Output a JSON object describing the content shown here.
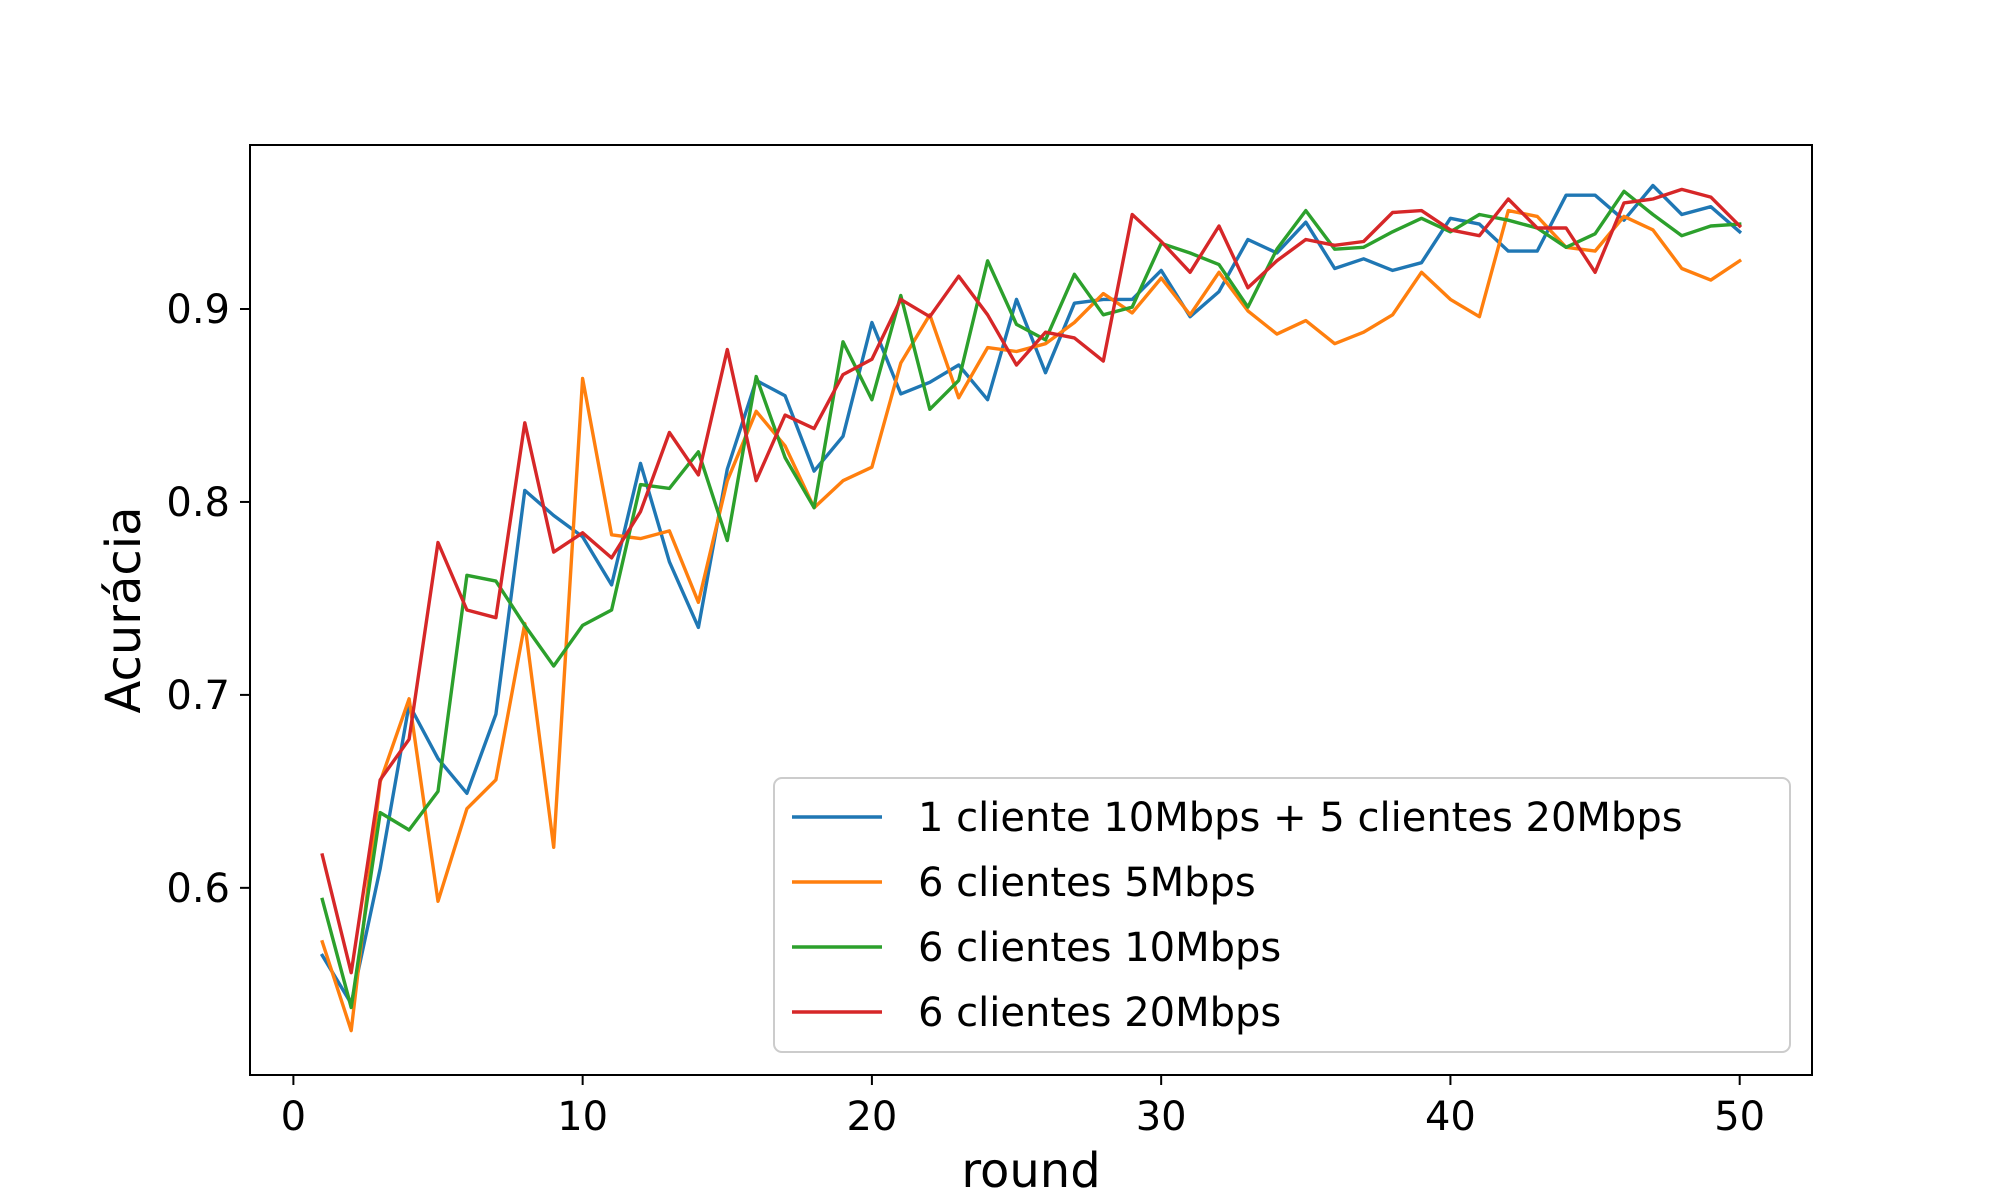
{
  "chart_data": {
    "type": "line",
    "title": "",
    "xlabel": "round",
    "ylabel": "Acurácia",
    "xlim": [
      -1.5,
      52.5
    ],
    "ylim": [
      0.503,
      0.985
    ],
    "xticks": [
      0,
      10,
      20,
      30,
      40,
      50
    ],
    "xtick_labels": [
      "0",
      "10",
      "20",
      "30",
      "40",
      "50"
    ],
    "yticks": [
      0.6,
      0.7,
      0.8,
      0.9
    ],
    "ytick_labels": [
      "0.6",
      "0.7",
      "0.8",
      "0.9"
    ],
    "grid": false,
    "legend_position": "lower-right",
    "x": [
      1,
      2,
      3,
      4,
      5,
      6,
      7,
      8,
      9,
      10,
      11,
      12,
      13,
      14,
      15,
      16,
      17,
      18,
      19,
      20,
      21,
      22,
      23,
      24,
      25,
      26,
      27,
      28,
      29,
      30,
      31,
      32,
      33,
      34,
      35,
      36,
      37,
      38,
      39,
      40,
      41,
      42,
      43,
      44,
      45,
      46,
      47,
      48,
      49,
      50
    ],
    "series": [
      {
        "name": "1 cliente 10Mbps + 5 clientes 20Mbps",
        "color": "#1f77b4",
        "values": [
          0.565,
          0.54,
          0.61,
          0.695,
          0.667,
          0.649,
          0.69,
          0.806,
          0.793,
          0.782,
          0.757,
          0.82,
          0.769,
          0.735,
          0.817,
          0.863,
          0.855,
          0.816,
          0.834,
          0.893,
          0.856,
          0.862,
          0.871,
          0.853,
          0.905,
          0.867,
          0.903,
          0.905,
          0.905,
          0.92,
          0.896,
          0.909,
          0.936,
          0.929,
          0.945,
          0.921,
          0.926,
          0.92,
          0.924,
          0.947,
          0.944,
          0.93,
          0.93,
          0.959,
          0.959,
          0.946,
          0.964,
          0.949,
          0.953,
          0.94
        ]
      },
      {
        "name": "6 clientes 5Mbps",
        "color": "#ff7f0e",
        "values": [
          0.572,
          0.526,
          0.655,
          0.698,
          0.593,
          0.641,
          0.656,
          0.737,
          0.621,
          0.864,
          0.783,
          0.781,
          0.785,
          0.748,
          0.811,
          0.847,
          0.829,
          0.797,
          0.811,
          0.818,
          0.872,
          0.897,
          0.854,
          0.88,
          0.878,
          0.882,
          0.893,
          0.908,
          0.898,
          0.916,
          0.897,
          0.919,
          0.899,
          0.887,
          0.894,
          0.882,
          0.888,
          0.897,
          0.919,
          0.905,
          0.896,
          0.951,
          0.948,
          0.932,
          0.93,
          0.948,
          0.941,
          0.921,
          0.915,
          0.925
        ]
      },
      {
        "name": "6 clientes 10Mbps",
        "color": "#2ca02c",
        "values": [
          0.594,
          0.538,
          0.639,
          0.63,
          0.65,
          0.762,
          0.759,
          0.736,
          0.715,
          0.736,
          0.744,
          0.809,
          0.807,
          0.826,
          0.78,
          0.865,
          0.823,
          0.797,
          0.883,
          0.853,
          0.907,
          0.848,
          0.863,
          0.925,
          0.892,
          0.884,
          0.918,
          0.897,
          0.901,
          0.934,
          0.929,
          0.923,
          0.901,
          0.931,
          0.951,
          0.931,
          0.932,
          0.94,
          0.947,
          0.94,
          0.949,
          0.946,
          0.942,
          0.932,
          0.939,
          0.961,
          0.949,
          0.938,
          0.943,
          0.944
        ]
      },
      {
        "name": "6 clientes 20Mbps",
        "color": "#d62728",
        "values": [
          0.617,
          0.556,
          0.656,
          0.677,
          0.779,
          0.744,
          0.74,
          0.841,
          0.774,
          0.784,
          0.771,
          0.795,
          0.836,
          0.814,
          0.879,
          0.811,
          0.845,
          0.838,
          0.866,
          0.874,
          0.905,
          0.896,
          0.917,
          0.897,
          0.871,
          0.888,
          0.885,
          0.873,
          0.949,
          0.935,
          0.919,
          0.943,
          0.911,
          0.925,
          0.936,
          0.933,
          0.935,
          0.95,
          0.951,
          0.941,
          0.938,
          0.957,
          0.942,
          0.942,
          0.919,
          0.955,
          0.957,
          0.962,
          0.958,
          0.943
        ]
      }
    ]
  }
}
